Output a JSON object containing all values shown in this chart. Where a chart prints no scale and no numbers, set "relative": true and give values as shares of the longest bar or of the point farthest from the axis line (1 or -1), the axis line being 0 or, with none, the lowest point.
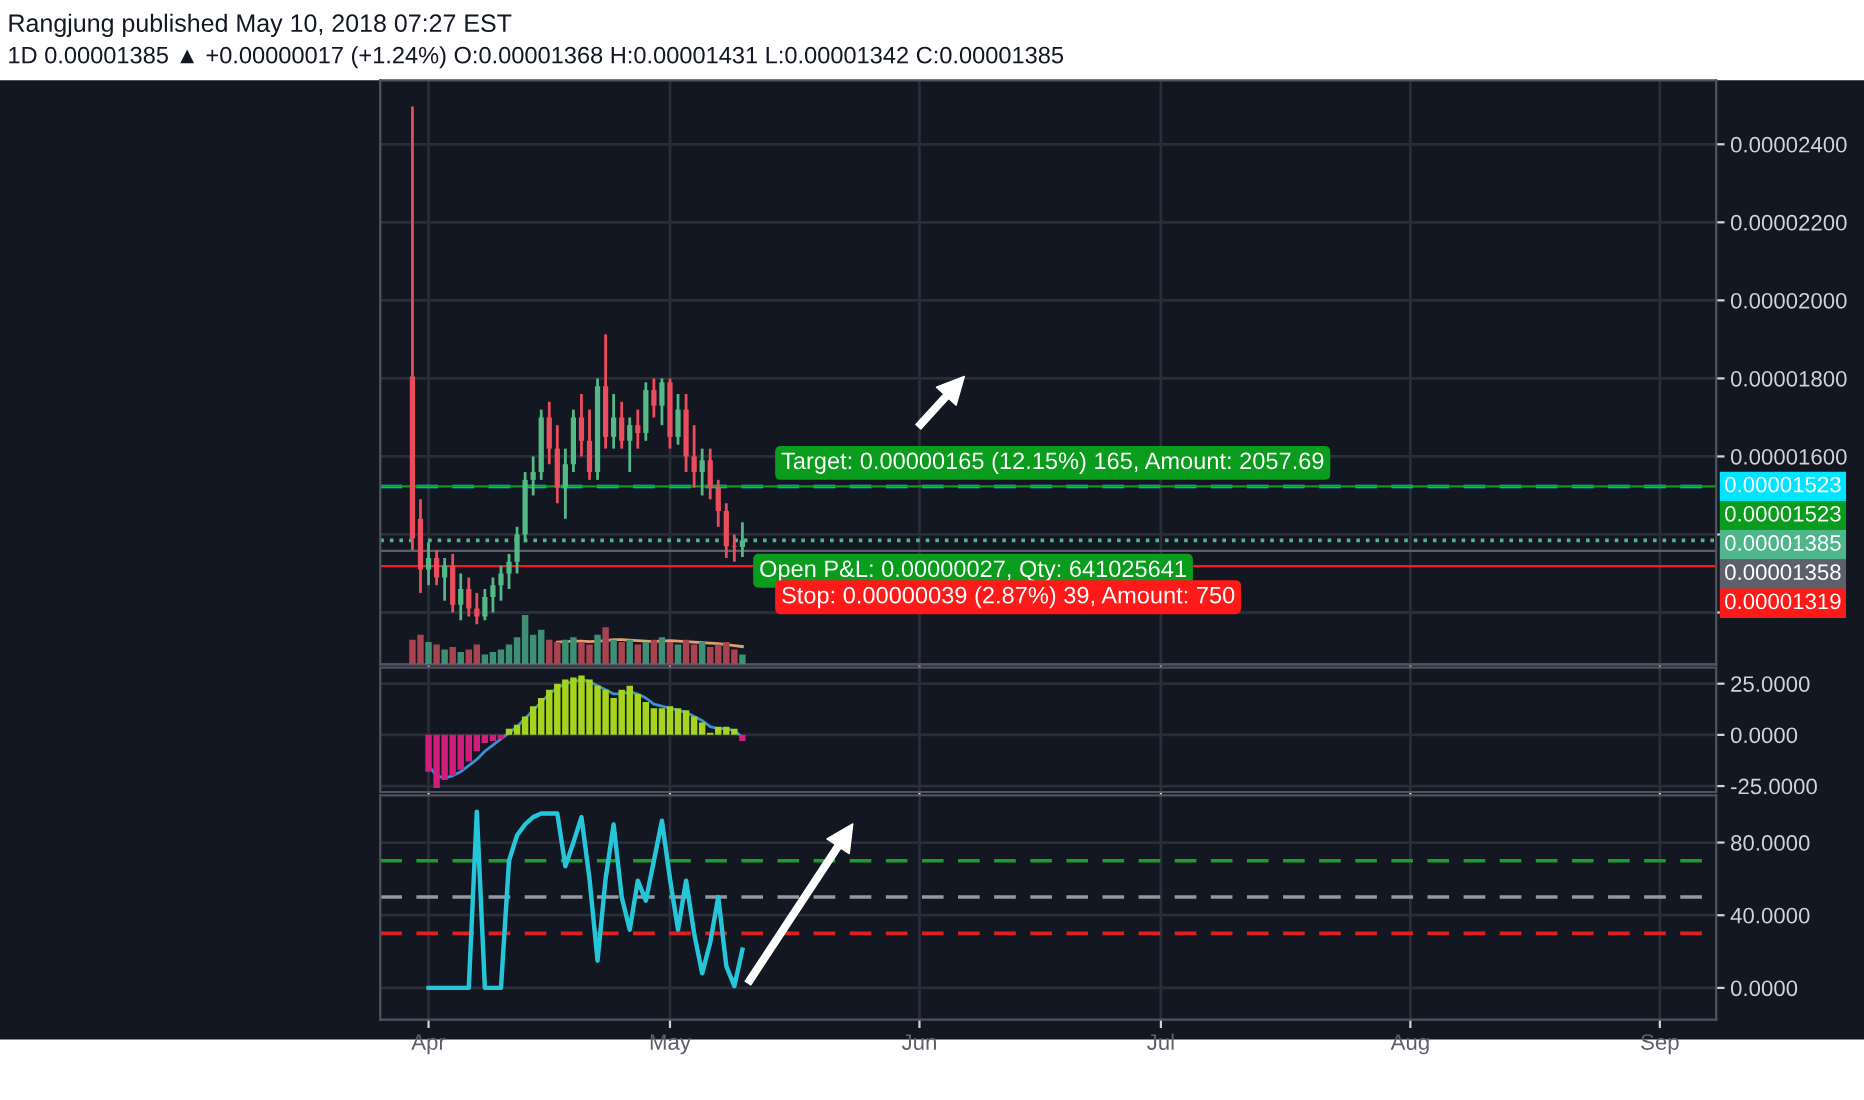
{
  "chart_data": [
    {
      "type": "candlestick",
      "title": "Rangjung published May 10, 2018 07:27 EST",
      "subtitle": "1D 0.00001385 ▲ +0.00000017 (+1.24%) O:0.00001368 H:0.00001431 L:0.00001342 C:0.00001385",
      "x": [
        "2018-03-30",
        "2018-03-31",
        "2018-04-01",
        "2018-04-02",
        "2018-04-03",
        "2018-04-04",
        "2018-04-05",
        "2018-04-06",
        "2018-04-07",
        "2018-04-08",
        "2018-04-09",
        "2018-04-10",
        "2018-04-11",
        "2018-04-12",
        "2018-04-13",
        "2018-04-14",
        "2018-04-15",
        "2018-04-16",
        "2018-04-17",
        "2018-04-18",
        "2018-04-19",
        "2018-04-20",
        "2018-04-21",
        "2018-04-22",
        "2018-04-23",
        "2018-04-24",
        "2018-04-25",
        "2018-04-26",
        "2018-04-27",
        "2018-04-28",
        "2018-04-29",
        "2018-04-30",
        "2018-05-01",
        "2018-05-02",
        "2018-05-03",
        "2018-05-04",
        "2018-05-05",
        "2018-05-06",
        "2018-05-07",
        "2018-05-08",
        "2018-05-09",
        "2018-05-10"
      ],
      "ohlc": [
        [
          1.805e-05,
          2.497e-05,
          1.36e-05,
          1.39e-05
        ],
        [
          1.44e-05,
          1.49e-05,
          1.25e-05,
          1.31e-05
        ],
        [
          1.31e-05,
          1.38e-05,
          1.27e-05,
          1.34e-05
        ],
        [
          1.34e-05,
          1.36e-05,
          1.27e-05,
          1.29e-05
        ],
        [
          1.29e-05,
          1.34e-05,
          1.23e-05,
          1.32e-05
        ],
        [
          1.32e-05,
          1.35e-05,
          1.2e-05,
          1.22e-05
        ],
        [
          1.22e-05,
          1.3e-05,
          1.18e-05,
          1.26e-05
        ],
        [
          1.26e-05,
          1.29e-05,
          1.19e-05,
          1.21e-05
        ],
        [
          1.21e-05,
          1.25e-05,
          1.17e-05,
          1.19e-05
        ],
        [
          1.19e-05,
          1.26e-05,
          1.18e-05,
          1.24e-05
        ],
        [
          1.24e-05,
          1.29e-05,
          1.2e-05,
          1.27e-05
        ],
        [
          1.27e-05,
          1.32e-05,
          1.23e-05,
          1.3e-05
        ],
        [
          1.3e-05,
          1.35e-05,
          1.26e-05,
          1.33e-05
        ],
        [
          1.33e-05,
          1.42e-05,
          1.3e-05,
          1.4e-05
        ],
        [
          1.4e-05,
          1.56e-05,
          1.38e-05,
          1.54e-05
        ],
        [
          1.54e-05,
          1.6e-05,
          1.5e-05,
          1.56e-05
        ],
        [
          1.56e-05,
          1.72e-05,
          1.54e-05,
          1.7e-05
        ],
        [
          1.7e-05,
          1.74e-05,
          1.58e-05,
          1.62e-05
        ],
        [
          1.62e-05,
          1.68e-05,
          1.48e-05,
          1.52e-05
        ],
        [
          1.52e-05,
          1.62e-05,
          1.44e-05,
          1.58e-05
        ],
        [
          1.58e-05,
          1.72e-05,
          1.56e-05,
          1.7e-05
        ],
        [
          1.7e-05,
          1.76e-05,
          1.6e-05,
          1.64e-05
        ],
        [
          1.64e-05,
          1.72e-05,
          1.54e-05,
          1.56e-05
        ],
        [
          1.56e-05,
          1.8e-05,
          1.54e-05,
          1.78e-05
        ],
        [
          1.78e-05,
          1.913e-05,
          1.62e-05,
          1.65e-05
        ],
        [
          1.65e-05,
          1.76e-05,
          1.62e-05,
          1.7e-05
        ],
        [
          1.7e-05,
          1.74e-05,
          1.62e-05,
          1.64e-05
        ],
        [
          1.64e-05,
          1.7e-05,
          1.56e-05,
          1.68e-05
        ],
        [
          1.68e-05,
          1.72e-05,
          1.62e-05,
          1.66e-05
        ],
        [
          1.66e-05,
          1.79e-05,
          1.64e-05,
          1.77e-05
        ],
        [
          1.77e-05,
          1.8e-05,
          1.7e-05,
          1.73e-05
        ],
        [
          1.73e-05,
          1.8e-05,
          1.68e-05,
          1.79e-05
        ],
        [
          1.79e-05,
          1.8e-05,
          1.62e-05,
          1.65e-05
        ],
        [
          1.65e-05,
          1.76e-05,
          1.63e-05,
          1.72e-05
        ],
        [
          1.72e-05,
          1.76e-05,
          1.56e-05,
          1.6e-05
        ],
        [
          1.6e-05,
          1.68e-05,
          1.52e-05,
          1.56e-05
        ],
        [
          1.56e-05,
          1.62e-05,
          1.5e-05,
          1.59e-05
        ],
        [
          1.59e-05,
          1.62e-05,
          1.49e-05,
          1.52e-05
        ],
        [
          1.52e-05,
          1.54e-05,
          1.42e-05,
          1.46e-05
        ],
        [
          1.46e-05,
          1.48e-05,
          1.34e-05,
          1.37e-05
        ],
        [
          1.37e-05,
          1.4e-05,
          1.33e-05,
          1.368e-05
        ],
        [
          1.368e-05,
          1.431e-05,
          1.342e-05,
          1.385e-05
        ]
      ],
      "colors": [
        "#eb4d5c",
        "#eb4d5c",
        "#53b987",
        "#eb4d5c",
        "#53b987",
        "#eb4d5c",
        "#53b987",
        "#eb4d5c",
        "#eb4d5c",
        "#53b987",
        "#53b987",
        "#53b987",
        "#53b987",
        "#53b987",
        "#53b987",
        "#53b987",
        "#53b987",
        "#eb4d5c",
        "#eb4d5c",
        "#53b987",
        "#53b987",
        "#eb4d5c",
        "#eb4d5c",
        "#53b987",
        "#eb4d5c",
        "#53b987",
        "#eb4d5c",
        "#53b987",
        "#eb4d5c",
        "#53b987",
        "#eb4d5c",
        "#53b987",
        "#eb4d5c",
        "#53b987",
        "#eb4d5c",
        "#eb4d5c",
        "#53b987",
        "#eb4d5c",
        "#eb4d5c",
        "#eb4d5c",
        "#eb4d5c",
        "#53b987"
      ],
      "xlim": [
        "2018-03-26",
        "2018-09-08"
      ],
      "ylim": [
        1.067e-05,
        2.564e-05
      ],
      "yticks": [
        {
          "value": 1.2e-05,
          "label": null
        },
        {
          "value": 1.4e-05,
          "label": null
        },
        {
          "value": 1.6e-05,
          "label": "0.00001600"
        },
        {
          "value": 1.8e-05,
          "label": "0.00001800"
        },
        {
          "value": 2e-05,
          "label": "0.00002000"
        },
        {
          "value": 2.2e-05,
          "label": "0.00002200"
        },
        {
          "value": 2.4e-05,
          "label": "0.00002400"
        }
      ],
      "xticks": [
        {
          "value": "2018-04-01",
          "label": null
        },
        {
          "value": "2018-05-01",
          "label": null
        },
        {
          "value": "2018-06-01",
          "label": null
        },
        {
          "value": "2018-07-01",
          "label": null
        },
        {
          "value": "2018-08-01",
          "label": null
        },
        {
          "value": "2018-09-01",
          "label": null
        }
      ],
      "tick_labels": "y",
      "grid": true,
      "ref_lines": [
        {
          "axis": "y",
          "value": 1.523e-05,
          "label": "0.00001523",
          "color": "#00e5ff",
          "line_style": "dashed"
        },
        {
          "axis": "y",
          "value": 1.523e-05,
          "label": "0.00001523",
          "color": "#0a9c1c",
          "line_style": "solid"
        },
        {
          "axis": "y",
          "value": 1.385e-05,
          "label": "0.00001385",
          "color": "#4fb58a",
          "line_style": "dotted"
        },
        {
          "axis": "y",
          "value": 1.358e-05,
          "label": "0.00001358",
          "color": "#5d606b",
          "line_style": "solid"
        },
        {
          "axis": "y",
          "value": 1.319e-05,
          "label": "0.00001319",
          "color": "#ff1a1a",
          "line_style": "solid"
        }
      ],
      "annotations": [
        "Target: 0.00000165 (12.15%) 165, Amount: 2057.69",
        {
          "text": "Open P&L: 0.00000027, Qty: 641025641",
          "x": "2018-05-10",
          "y": 1.385e-05
        },
        "Stop: 0.00000039 (2.87%) 39, Amount: 750"
      ]
    },
    {
      "type": "bar",
      "relative": true,
      "tick_labels": false,
      "xticks": [
        {
          "value": "2018-04-01",
          "label": null
        },
        {
          "value": "2018-05-01",
          "label": null
        },
        {
          "value": "2018-06-01",
          "label": null
        },
        {
          "value": "2018-07-01",
          "label": null
        },
        {
          "value": "2018-08-01",
          "label": null
        },
        {
          "value": "2018-09-01",
          "label": null
        }
      ],
      "x": [
        "2018-03-30",
        "2018-03-31",
        "2018-04-01",
        "2018-04-02",
        "2018-04-03",
        "2018-04-04",
        "2018-04-05",
        "2018-04-06",
        "2018-04-07",
        "2018-04-08",
        "2018-04-09",
        "2018-04-10",
        "2018-04-11",
        "2018-04-12",
        "2018-04-13",
        "2018-04-14",
        "2018-04-15",
        "2018-04-16",
        "2018-04-17",
        "2018-04-18",
        "2018-04-19",
        "2018-04-20",
        "2018-04-21",
        "2018-04-22",
        "2018-04-23",
        "2018-04-24",
        "2018-04-25",
        "2018-04-26",
        "2018-04-27",
        "2018-04-28",
        "2018-04-29",
        "2018-04-30",
        "2018-05-01",
        "2018-05-02",
        "2018-05-03",
        "2018-05-04",
        "2018-05-05",
        "2018-05-06",
        "2018-05-07",
        "2018-05-08",
        "2018-05-09",
        "2018-05-10"
      ],
      "xlim": [
        "2018-03-26",
        "2018-09-08"
      ],
      "series": [
        {
          "type": "bar",
          "values": [
            0.5,
            0.6,
            0.45,
            0.4,
            0.3,
            0.35,
            0.25,
            0.3,
            0.4,
            0.2,
            0.25,
            0.3,
            0.4,
            0.55,
            1.0,
            0.6,
            0.7,
            0.5,
            0.45,
            0.5,
            0.55,
            0.45,
            0.4,
            0.6,
            0.75,
            0.5,
            0.45,
            0.5,
            0.4,
            0.45,
            0.5,
            0.55,
            0.45,
            0.4,
            0.5,
            0.4,
            0.45,
            0.35,
            0.4,
            0.45,
            0.3,
            0.2
          ],
          "colors": [
            "#a8434f",
            "#a8434f",
            "#3f8f74",
            "#a8434f",
            "#3f8f74",
            "#a8434f",
            "#3f8f74",
            "#a8434f",
            "#a8434f",
            "#3f8f74",
            "#3f8f74",
            "#3f8f74",
            "#3f8f74",
            "#3f8f74",
            "#3f8f74",
            "#3f8f74",
            "#3f8f74",
            "#a8434f",
            "#a8434f",
            "#3f8f74",
            "#3f8f74",
            "#a8434f",
            "#a8434f",
            "#3f8f74",
            "#a8434f",
            "#3f8f74",
            "#a8434f",
            "#3f8f74",
            "#a8434f",
            "#3f8f74",
            "#a8434f",
            "#3f8f74",
            "#a8434f",
            "#3f8f74",
            "#a8434f",
            "#a8434f",
            "#3f8f74",
            "#a8434f",
            "#a8434f",
            "#a8434f",
            "#a8434f",
            "#3f8f74"
          ]
        },
        {
          "type": "line",
          "color": "#e0a070",
          "values": [
            null,
            null,
            null,
            null,
            null,
            null,
            null,
            null,
            null,
            null,
            null,
            null,
            null,
            null,
            null,
            null,
            null,
            null,
            0.45,
            0.46,
            0.47,
            0.47,
            0.46,
            0.47,
            0.48,
            0.5,
            0.5,
            0.49,
            0.48,
            0.47,
            0.46,
            0.47,
            0.48,
            0.47,
            0.46,
            0.45,
            0.44,
            0.43,
            0.42,
            0.4,
            0.38,
            0.36
          ]
        }
      ]
    },
    {
      "type": "bar",
      "x": [
        "2018-04-01",
        "2018-04-02",
        "2018-04-03",
        "2018-04-04",
        "2018-04-05",
        "2018-04-06",
        "2018-04-07",
        "2018-04-08",
        "2018-04-09",
        "2018-04-10",
        "2018-04-11",
        "2018-04-12",
        "2018-04-13",
        "2018-04-14",
        "2018-04-15",
        "2018-04-16",
        "2018-04-17",
        "2018-04-18",
        "2018-04-19",
        "2018-04-20",
        "2018-04-21",
        "2018-04-22",
        "2018-04-23",
        "2018-04-24",
        "2018-04-25",
        "2018-04-26",
        "2018-04-27",
        "2018-04-28",
        "2018-04-29",
        "2018-04-30",
        "2018-05-01",
        "2018-05-02",
        "2018-05-03",
        "2018-05-04",
        "2018-05-05",
        "2018-05-06",
        "2018-05-07",
        "2018-05-08",
        "2018-05-09",
        "2018-05-10"
      ],
      "xlim": [
        "2018-03-26",
        "2018-09-08"
      ],
      "ylim": [
        -27.9,
        32.8
      ],
      "yticks": [
        {
          "value": -25,
          "label": "-25.0000"
        },
        {
          "value": 0,
          "label": "0.0000"
        },
        {
          "value": 25,
          "label": "25.0000"
        }
      ],
      "xticks": [
        {
          "value": "2018-04-01",
          "label": null
        },
        {
          "value": "2018-05-01",
          "label": null
        },
        {
          "value": "2018-06-01",
          "label": null
        },
        {
          "value": "2018-07-01",
          "label": null
        },
        {
          "value": "2018-08-01",
          "label": null
        },
        {
          "value": "2018-09-01",
          "label": null
        }
      ],
      "tick_labels": "y",
      "grid": true,
      "series": [
        {
          "type": "bar",
          "values": [
            -18,
            -26,
            -22,
            -20,
            -17,
            -13,
            -8,
            -4,
            -3,
            -2,
            3,
            5,
            9,
            14,
            18,
            22,
            25,
            27,
            28,
            29,
            27,
            24,
            22,
            18,
            22,
            24,
            20,
            16,
            13,
            13,
            14,
            13,
            12,
            9,
            6,
            1,
            4,
            4,
            3,
            -3
          ],
          "colors": [
            "#d01e7a",
            "#d01e7a",
            "#d01e7a",
            "#d01e7a",
            "#d01e7a",
            "#d01e7a",
            "#d01e7a",
            "#d01e7a",
            "#d01e7a",
            "#d01e7a",
            "#a6d41e",
            "#a6d41e",
            "#a6d41e",
            "#a6d41e",
            "#a6d41e",
            "#a6d41e",
            "#a6d41e",
            "#a6d41e",
            "#a6d41e",
            "#a6d41e",
            "#a6d41e",
            "#a6d41e",
            "#a6d41e",
            "#a6d41e",
            "#a6d41e",
            "#a6d41e",
            "#a6d41e",
            "#a6d41e",
            "#a6d41e",
            "#a6d41e",
            "#a6d41e",
            "#a6d41e",
            "#a6d41e",
            "#a6d41e",
            "#a6d41e",
            "#a6d41e",
            "#a6d41e",
            "#a6d41e",
            "#a6d41e",
            "#d01e7a"
          ]
        },
        {
          "type": "line",
          "color": "#3d8fd6",
          "values": [
            -15,
            -20,
            -21,
            -20,
            -18,
            -15,
            -12,
            -8,
            -5,
            -2,
            1,
            4,
            8,
            12,
            16,
            20,
            23,
            25,
            26,
            27,
            26,
            24,
            22,
            20,
            20,
            21,
            20,
            18,
            15,
            14,
            13,
            12,
            11,
            9,
            7,
            4,
            3,
            3,
            2,
            -1
          ]
        }
      ]
    },
    {
      "type": "line",
      "x": [
        "2018-04-01",
        "2018-04-02",
        "2018-04-03",
        "2018-04-04",
        "2018-04-05",
        "2018-04-06",
        "2018-04-07",
        "2018-04-08",
        "2018-04-09",
        "2018-04-10",
        "2018-04-11",
        "2018-04-12",
        "2018-04-13",
        "2018-04-14",
        "2018-04-15",
        "2018-04-16",
        "2018-04-17",
        "2018-04-18",
        "2018-04-19",
        "2018-04-20",
        "2018-04-21",
        "2018-04-22",
        "2018-04-23",
        "2018-04-24",
        "2018-04-25",
        "2018-04-26",
        "2018-04-27",
        "2018-04-28",
        "2018-04-29",
        "2018-04-30",
        "2018-05-01",
        "2018-05-02",
        "2018-05-03",
        "2018-05-04",
        "2018-05-05",
        "2018-05-06",
        "2018-05-07",
        "2018-05-08",
        "2018-05-09",
        "2018-05-10"
      ],
      "xlim": [
        "2018-03-26",
        "2018-09-08"
      ],
      "ylim": [
        -17.5,
        106
      ],
      "yticks": [
        {
          "value": 0,
          "label": "0.0000"
        },
        {
          "value": 40,
          "label": "40.0000"
        },
        {
          "value": 80,
          "label": "80.0000"
        }
      ],
      "xticks": [
        {
          "value": "2018-04-01",
          "label": "Apr"
        },
        {
          "value": "2018-05-01",
          "label": "May"
        },
        {
          "value": "2018-06-01",
          "label": "Jun"
        },
        {
          "value": "2018-07-01",
          "label": "Jul"
        },
        {
          "value": "2018-08-01",
          "label": "Aug"
        },
        {
          "value": "2018-09-01",
          "label": "Sep"
        }
      ],
      "grid": true,
      "series": [
        {
          "color": "#26c6da",
          "values": [
            0,
            0,
            0,
            0,
            0,
            0,
            97,
            0,
            0,
            0,
            70,
            84,
            90,
            94,
            96,
            96,
            96,
            67,
            80,
            94,
            60,
            15,
            60,
            90,
            50,
            32,
            59,
            48,
            70,
            92,
            60,
            32,
            59,
            30,
            8,
            25,
            50,
            12,
            1,
            21
          ]
        }
      ],
      "ref_lines": [
        {
          "axis": "y",
          "value": 70,
          "color": "#1e9c2e",
          "line_style": "dashed"
        },
        {
          "axis": "y",
          "value": 50,
          "color": "#9598a1",
          "line_style": "dashed"
        },
        {
          "axis": "y",
          "value": 30,
          "color": "#e02020",
          "line_style": "dashed"
        }
      ]
    }
  ]
}
